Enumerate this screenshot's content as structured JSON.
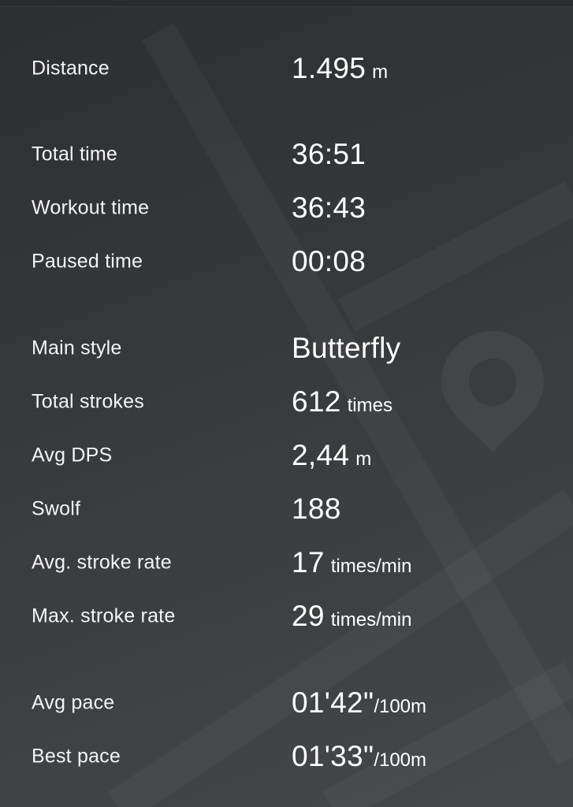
{
  "stats": [
    {
      "label": "Distance",
      "value": "1.495",
      "unit": "m"
    },
    {
      "label": "Total time",
      "value": "36:51",
      "unit": ""
    },
    {
      "label": "Workout time",
      "value": "36:43",
      "unit": ""
    },
    {
      "label": "Paused time",
      "value": "00:08",
      "unit": ""
    },
    {
      "label": "Main style",
      "value": "Butterfly",
      "unit": ""
    },
    {
      "label": "Total strokes",
      "value": "612",
      "unit": "times"
    },
    {
      "label": "Avg DPS",
      "value": "2,44",
      "unit": "m"
    },
    {
      "label": "Swolf",
      "value": "188",
      "unit": ""
    },
    {
      "label": "Avg. stroke rate",
      "value": "17",
      "unit": "times/min"
    },
    {
      "label": "Max. stroke rate",
      "value": "29",
      "unit": "times/min"
    },
    {
      "label": "Avg pace",
      "value": "01'42\"",
      "unit": "/100m"
    },
    {
      "label": "Best pace",
      "value": "01'33\"",
      "unit": "/100m"
    }
  ],
  "background": {
    "icon": "map-pin-icon",
    "colors": {
      "dark": "#2c2e32",
      "light": "#45474b"
    }
  }
}
